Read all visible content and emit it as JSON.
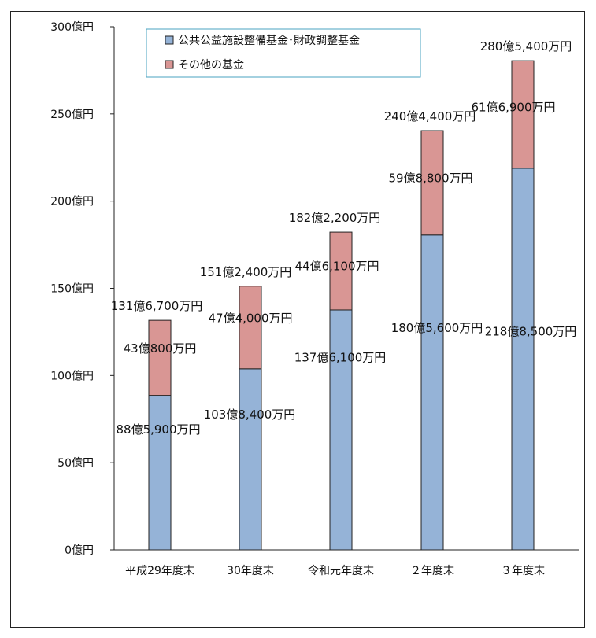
{
  "chart_data": {
    "type": "bar",
    "stacked": true,
    "title": "",
    "xlabel": "",
    "ylabel": "",
    "ylim": [
      0,
      300
    ],
    "y_unit": "億円",
    "yticks": [
      "0億円",
      "50億円",
      "100億円",
      "150億円",
      "200億円",
      "250億円",
      "300億円"
    ],
    "y_tick_values": [
      0,
      50,
      100,
      150,
      200,
      250,
      300
    ],
    "categories": [
      "平成29年度末",
      "30年度末",
      "令和元年度末",
      "２年度末",
      "３年度末"
    ],
    "series": [
      {
        "name": "公共公益施設整備基金･財政調整基金",
        "color": "#95b3d7",
        "values": [
          88.59,
          103.84,
          137.61,
          180.56,
          218.85
        ],
        "labels": [
          "88億5,900万円",
          "103億8,400万円",
          "137億6,100万円",
          "180億5,600万円",
          "218億8,500万円"
        ]
      },
      {
        "name": "その他の基金",
        "color": "#d99694",
        "values": [
          43.08,
          47.4,
          44.61,
          59.88,
          61.69
        ],
        "labels": [
          "43億800万円",
          "47億4,000万円",
          "44億6,100万円",
          "59億8,800万円",
          "61億6,900万円"
        ]
      }
    ],
    "totals": [
      131.67,
      151.24,
      182.22,
      240.44,
      280.54
    ],
    "total_labels": [
      "131億6,700万円",
      "151億2,400万円",
      "182億2,200万円",
      "240億4,400万円",
      "280億5,400万円"
    ],
    "legend_position": "top-center",
    "grid": false
  }
}
